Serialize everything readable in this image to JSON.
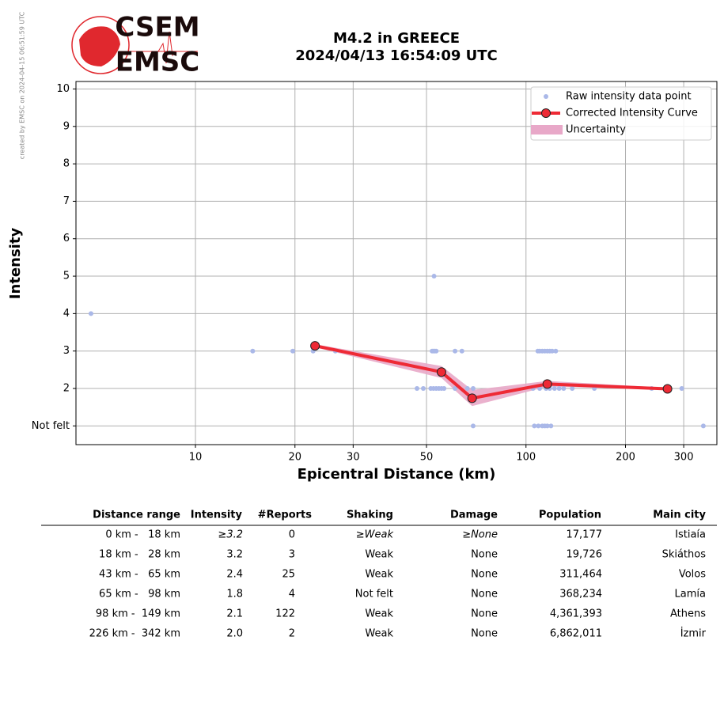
{
  "header": {
    "logo_top": "CSEM",
    "logo_bottom": "EMSC",
    "credit": "created by EMSC on 2024-04-15 06:51:59 UTC"
  },
  "chart_data": {
    "type": "scatter",
    "title": "M4.2 in GREECE",
    "subtitle": "2024/04/13 16:54:09 UTC",
    "x_label": "Epicentral Distance (km)",
    "y_label": "Intensity",
    "xscale": "log",
    "grid": true,
    "legend": "upper right",
    "xlim": [
      4.35,
      378
    ],
    "ylim": [
      0.5,
      10.2
    ],
    "xticks": [
      10,
      20,
      30,
      50,
      100,
      200,
      300
    ],
    "yticks": [
      {
        "value": 1,
        "label": "Not felt"
      },
      2,
      3,
      4,
      5,
      6,
      7,
      8,
      9,
      10
    ],
    "series": [
      {
        "name": "Raw intensity data point",
        "color": "#aab8e8",
        "x": [
          4.83,
          14.9,
          19.7,
          22.7,
          26.5,
          52.7,
          52,
          52.5,
          53,
          53.5,
          61,
          64,
          108.6,
          110,
          112,
          114,
          116,
          118,
          120,
          123,
          46.8,
          48.9,
          51.5,
          52.5,
          53.5,
          54.5,
          55.5,
          56.5,
          61,
          66.5,
          69.2,
          105,
          110,
          115,
          118,
          122,
          126,
          130,
          138,
          161,
          240,
          296,
          69.2,
          106,
          109,
          112,
          114,
          116,
          119,
          344
        ],
        "values": [
          4,
          3,
          3,
          3,
          3,
          5,
          3,
          3,
          3,
          3,
          3,
          3,
          3,
          3,
          3,
          3,
          3,
          3,
          3,
          3,
          2,
          2,
          2,
          2,
          2,
          2,
          2,
          2,
          2,
          2,
          2,
          2,
          2,
          2,
          2,
          2,
          2,
          2,
          2,
          2,
          2,
          2,
          1,
          1,
          1,
          1,
          1,
          1,
          1,
          1
        ]
      },
      {
        "name": "Corrected Intensity Curve",
        "color": "#ee2a35",
        "line": true,
        "x": [
          23,
          55.5,
          68.7,
          116,
          268
        ],
        "values": [
          3.14,
          2.44,
          1.74,
          2.12,
          1.99
        ]
      }
    ],
    "uncertainty": {
      "name": "Uncertainty",
      "color": "#e8a8c8",
      "x": [
        23,
        55.5,
        68.7,
        116,
        268
      ],
      "lower": [
        3.1,
        2.28,
        1.53,
        2.05,
        1.97
      ],
      "upper": [
        3.18,
        2.6,
        1.96,
        2.2,
        2.02
      ]
    }
  },
  "table": {
    "columns": [
      "Distance range",
      "Intensity",
      "#Reports",
      "Shaking",
      "Damage",
      "Population",
      "Main city"
    ],
    "rows": [
      [
        "0 km -   18 km",
        "≥3.2",
        "0",
        "≥Weak",
        "≥None",
        "17,177",
        "Istiaía"
      ],
      [
        "18 km -   28 km",
        "3.2",
        "3",
        "Weak",
        "None",
        "19,726",
        "Skiáthos"
      ],
      [
        "43 km -   65 km",
        "2.4",
        "25",
        "Weak",
        "None",
        "311,464",
        "Volos"
      ],
      [
        "65 km -   98 km",
        "1.8",
        "4",
        "Not felt",
        "None",
        "368,234",
        "Lamía"
      ],
      [
        "98 km -  149 km",
        "2.1",
        "122",
        "Weak",
        "None",
        "4,361,393",
        "Athens"
      ],
      [
        "226 km -  342 km",
        "2.0",
        "2",
        "Weak",
        "None",
        "6,862,011",
        "İzmir"
      ]
    ]
  }
}
